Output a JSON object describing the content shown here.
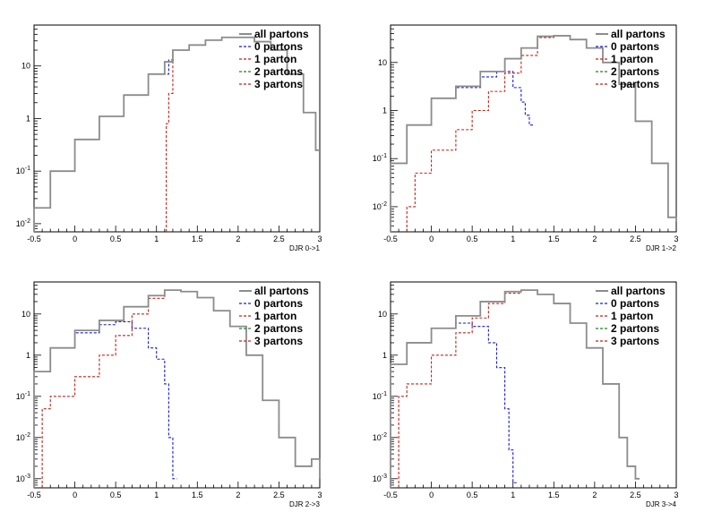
{
  "colors": {
    "all": "#8c8c8c",
    "p0": "#1a1ad6",
    "p1": "#c4221a",
    "p2": "#2a7a2a",
    "p3": "#c4221a",
    "frame": "#000000"
  },
  "legend_labels": [
    "all partons",
    "0 partons",
    "1 parton",
    "2 partons",
    "3 partons"
  ],
  "chart_data": [
    {
      "type": "line",
      "xlabel": "DJR 0->1",
      "xlim": [
        -0.5,
        3
      ],
      "ylim": [
        0.007,
        60
      ],
      "yscale": "log",
      "legend": "top-right",
      "x_ticks": [
        "-0.5",
        "0",
        "0.5",
        "1",
        "1.5",
        "2",
        "2.5",
        "3"
      ],
      "y_ticks": [
        "10^-2",
        "10^-1",
        "1",
        "10"
      ],
      "series": [
        {
          "name": "all partons",
          "x": [
            -0.5,
            -0.3,
            0,
            0.3,
            0.6,
            0.9,
            1.1,
            1.2,
            1.4,
            1.6,
            1.8,
            2.0,
            2.2,
            2.4,
            2.6,
            2.8,
            2.95
          ],
          "y": [
            0.02,
            0.1,
            0.4,
            1.1,
            2.8,
            7,
            12,
            20,
            25,
            31,
            35,
            35,
            29,
            20,
            7,
            1.3,
            0.25
          ]
        },
        {
          "name": "0 partons",
          "x": [
            -0.5,
            -0.3,
            0,
            0.3,
            0.6,
            0.9,
            1.15,
            1.18
          ],
          "y": [
            0.02,
            0.1,
            0.4,
            1.1,
            2.8,
            7,
            13,
            13
          ]
        },
        {
          "name": "1 parton",
          "x": [
            1.12,
            1.15,
            1.2,
            1.4,
            1.6,
            1.8,
            2.0,
            2.2,
            2.4,
            2.6,
            2.8,
            2.95
          ],
          "y": [
            0.8,
            3,
            20,
            25,
            31,
            35,
            35,
            29,
            20,
            7,
            1.3,
            0.25
          ]
        },
        {
          "name": "2 partons",
          "x": [],
          "y": []
        },
        {
          "name": "3 partons",
          "x": [],
          "y": []
        }
      ]
    },
    {
      "type": "line",
      "xlabel": "DJR 1->2",
      "xlim": [
        -0.5,
        3
      ],
      "ylim": [
        0.003,
        60
      ],
      "yscale": "log",
      "legend": "top-right",
      "x_ticks": [
        "-0.5",
        "0",
        "0.5",
        "1",
        "1.5",
        "2",
        "2.5",
        "3"
      ],
      "y_ticks": [
        "10^-2",
        "10^-1",
        "1",
        "10"
      ],
      "series": [
        {
          "name": "all partons",
          "x": [
            -0.5,
            -0.3,
            0,
            0.3,
            0.6,
            0.9,
            1.1,
            1.3,
            1.5,
            1.7,
            1.9,
            2.1,
            2.3,
            2.5,
            2.7,
            2.9,
            3.0
          ],
          "y": [
            0.08,
            0.5,
            1.8,
            3.2,
            6.5,
            12,
            20,
            35,
            36,
            30,
            20,
            10,
            3.5,
            0.6,
            0.08,
            0.006,
            0.005
          ]
        },
        {
          "name": "0 partons",
          "x": [
            -0.5,
            -0.3,
            0,
            0.3,
            0.6,
            0.8,
            1.0,
            1.1,
            1.15,
            1.2
          ],
          "y": [
            0.08,
            0.5,
            1.8,
            3.0,
            5.0,
            6.5,
            3.0,
            1.5,
            0.8,
            0.5
          ]
        },
        {
          "name": "1 parton",
          "x": [
            -0.3,
            -0.2,
            0,
            0.3,
            0.5,
            0.7,
            0.9,
            1.1,
            1.3,
            1.5,
            1.7,
            1.9,
            2.1,
            2.3,
            2.5,
            2.7,
            2.9,
            3.0
          ],
          "y": [
            0.01,
            0.05,
            0.15,
            0.4,
            1.0,
            2.5,
            6,
            14,
            33,
            36,
            30,
            20,
            10,
            3.5,
            0.6,
            0.08,
            0.006,
            0.005
          ]
        },
        {
          "name": "2 partons",
          "x": [],
          "y": []
        },
        {
          "name": "3 partons",
          "x": [],
          "y": []
        }
      ]
    },
    {
      "type": "line",
      "xlabel": "DJR 2->3",
      "xlim": [
        -0.5,
        3
      ],
      "ylim": [
        0.0006,
        60
      ],
      "yscale": "log",
      "legend": "top-right",
      "x_ticks": [
        "-0.5",
        "0",
        "0.5",
        "1",
        "1.5",
        "2",
        "2.5",
        "3"
      ],
      "y_ticks": [
        "10^-3",
        "10^-2",
        "10^-1",
        "1",
        "10"
      ],
      "series": [
        {
          "name": "all partons",
          "x": [
            -0.5,
            -0.3,
            0,
            0.3,
            0.6,
            0.9,
            1.1,
            1.3,
            1.5,
            1.7,
            1.9,
            2.1,
            2.3,
            2.5,
            2.7,
            2.9,
            3.0
          ],
          "y": [
            0.4,
            1.5,
            4,
            7,
            15,
            28,
            38,
            35,
            25,
            12,
            5,
            1.0,
            0.08,
            0.01,
            0.002,
            0.003,
            0.001
          ]
        },
        {
          "name": "0 partons",
          "x": [
            -0.5,
            -0.3,
            0,
            0.3,
            0.5,
            0.7,
            0.9,
            1.0,
            1.1,
            1.15,
            1.2
          ],
          "y": [
            0.4,
            1.5,
            3.5,
            5.5,
            6.5,
            4.5,
            1.5,
            0.8,
            0.2,
            0.01,
            0.001
          ]
        },
        {
          "name": "1 parton",
          "x": [
            -0.4,
            -0.3,
            0,
            0.3,
            0.5,
            0.7,
            0.9,
            1.1,
            1.3,
            1.5,
            1.7,
            1.9,
            2.1,
            2.3,
            2.5,
            2.7,
            2.9,
            3.0
          ],
          "y": [
            0.05,
            0.1,
            0.3,
            1.0,
            3,
            10,
            24,
            38,
            35,
            25,
            12,
            5,
            1.0,
            0.08,
            0.01,
            0.002,
            0.003,
            0.001
          ]
        },
        {
          "name": "2 partons",
          "x": [],
          "y": []
        },
        {
          "name": "3 partons",
          "x": [],
          "y": []
        }
      ]
    },
    {
      "type": "line",
      "xlabel": "DJR 3->4",
      "xlim": [
        -0.5,
        3
      ],
      "ylim": [
        0.0006,
        60
      ],
      "yscale": "log",
      "legend": "top-right",
      "x_ticks": [
        "-0.5",
        "0",
        "0.5",
        "1",
        "1.5",
        "2",
        "2.5",
        "3"
      ],
      "y_ticks": [
        "10^-3",
        "10^-2",
        "10^-1",
        "1",
        "10"
      ],
      "series": [
        {
          "name": "all partons",
          "x": [
            -0.5,
            -0.3,
            0,
            0.3,
            0.6,
            0.9,
            1.1,
            1.3,
            1.5,
            1.7,
            1.9,
            2.1,
            2.3,
            2.4,
            2.5
          ],
          "y": [
            0.6,
            2,
            4.5,
            9,
            20,
            35,
            38,
            30,
            18,
            6,
            1.5,
            0.2,
            0.01,
            0.002,
            0.001
          ]
        },
        {
          "name": "0 partons",
          "x": [
            -0.5,
            -0.3,
            0,
            0.3,
            0.5,
            0.7,
            0.8,
            0.9,
            0.95,
            1.0
          ],
          "y": [
            0.6,
            2,
            4.5,
            6,
            5,
            2.0,
            0.5,
            0.05,
            0.005,
            0.0008
          ]
        },
        {
          "name": "1 parton",
          "x": [
            -0.4,
            -0.3,
            0,
            0.3,
            0.5,
            0.7,
            0.9,
            1.1,
            1.3,
            1.5,
            1.7,
            1.9,
            2.1,
            2.3,
            2.4,
            2.5
          ],
          "y": [
            0.1,
            0.2,
            1.0,
            3.5,
            8,
            18,
            32,
            38,
            30,
            18,
            6,
            1.5,
            0.2,
            0.01,
            0.002,
            0.001
          ]
        },
        {
          "name": "2 partons",
          "x": [],
          "y": []
        },
        {
          "name": "3 partons",
          "x": [],
          "y": []
        }
      ]
    }
  ]
}
